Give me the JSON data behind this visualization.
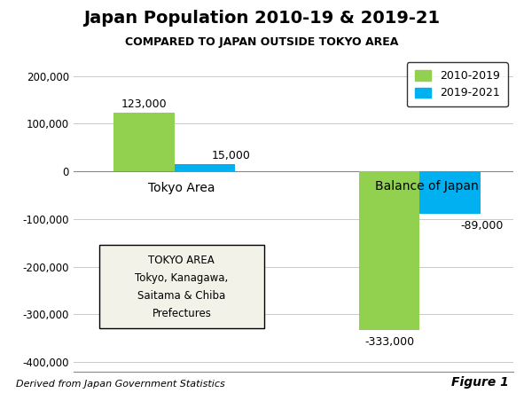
{
  "title_line1": "Japan Population 2010-19 & 2019-21",
  "title_line2": "COMPARED TO JAPAN OUTSIDE TOKYO AREA",
  "groups": [
    "Tokyo Area",
    "Balance of Japan"
  ],
  "series": {
    "2010-2019": [
      123000,
      -333000
    ],
    "2019-2021": [
      15000,
      -89000
    ]
  },
  "bar_colors": {
    "2010-2019": "#92D050",
    "2019-2021": "#00B0F0"
  },
  "ylim": [
    -420000,
    240000
  ],
  "yticks": [
    -400000,
    -300000,
    -200000,
    -100000,
    0,
    100000,
    200000
  ],
  "ytick_labels": [
    "-400,000",
    "-300,000",
    "-200,000",
    "-100,000",
    "0",
    "100,000",
    "200,000"
  ],
  "group_labels": [
    "Tokyo Area",
    "Balance of Japan"
  ],
  "annotation_text": "TOKYO AREA\nTokyo, Kanagawa,\nSaitama & Chiba\nPrefectures",
  "annotation_bg": "#F2F2E8",
  "footnote": "Derived from Japan Government Statistics",
  "figure_label": "Figure 1",
  "legend_labels": [
    "2010-2019",
    "2019-2021"
  ],
  "background_color": "#FFFFFF",
  "bar_width": 0.42,
  "group_positions": [
    1.0,
    2.7
  ]
}
